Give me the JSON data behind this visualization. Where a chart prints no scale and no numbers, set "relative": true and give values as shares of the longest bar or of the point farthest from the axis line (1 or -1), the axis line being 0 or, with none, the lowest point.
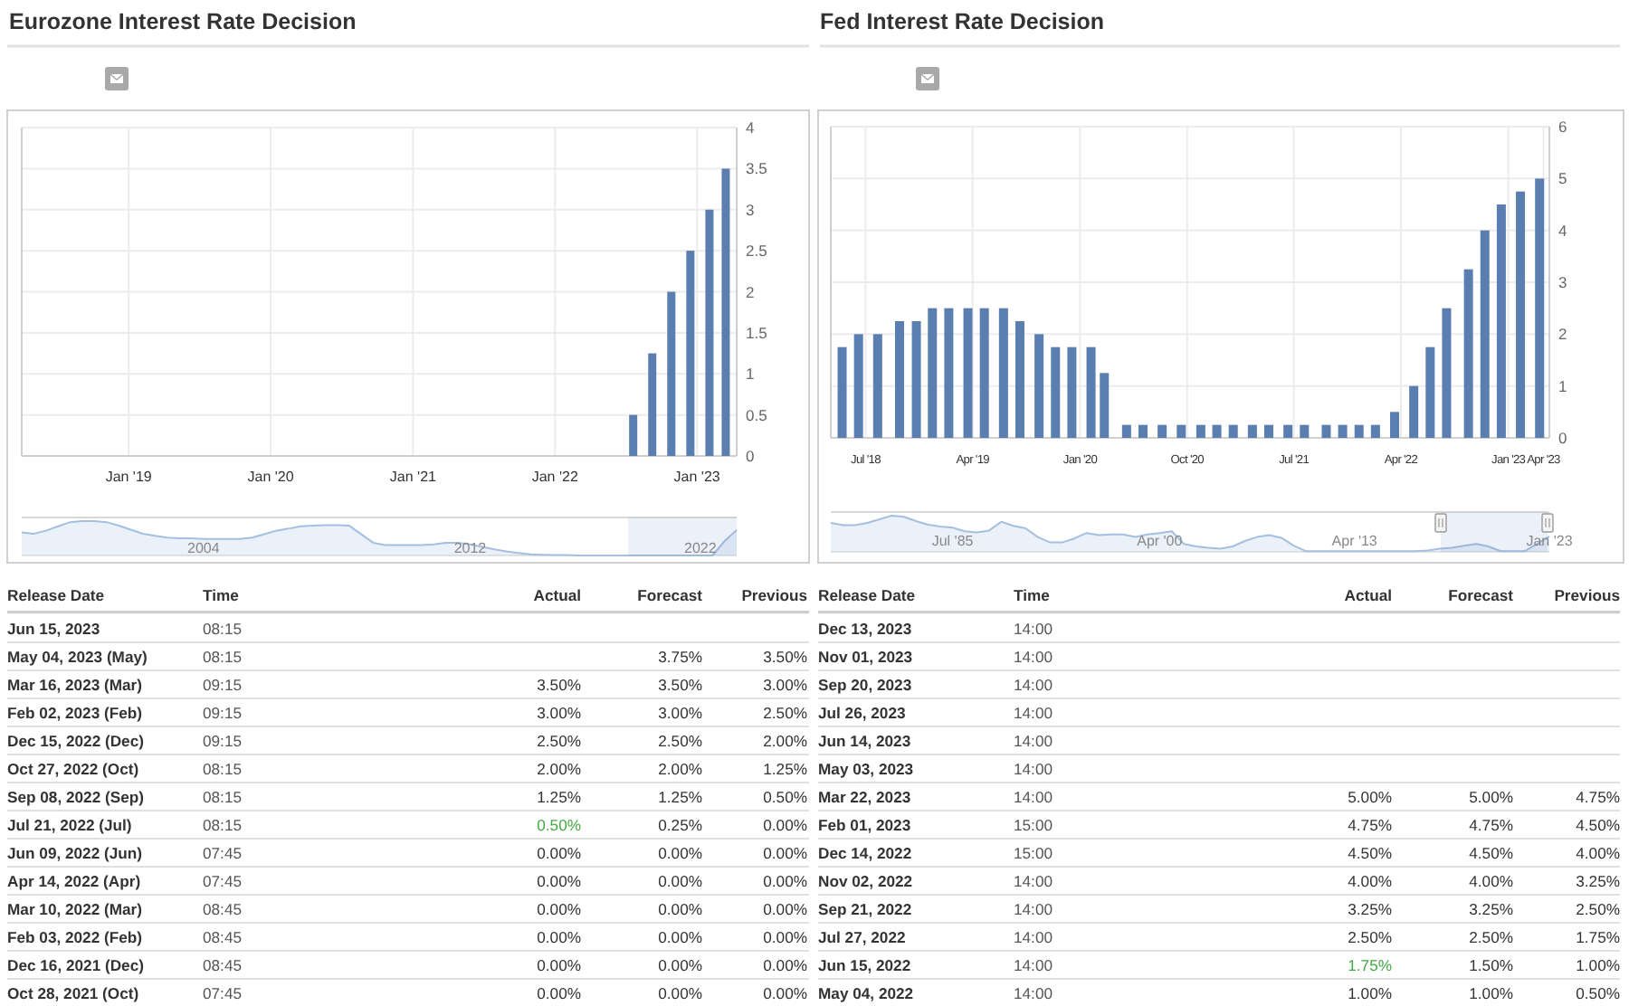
{
  "chart_data": [
    {
      "type": "bar",
      "title": "Eurozone Interest Rate Decision",
      "x": [
        "2022-07-21",
        "2022-09-08",
        "2022-10-27",
        "2022-12-15",
        "2023-02-02",
        "2023-03-16"
      ],
      "values": [
        0.5,
        1.25,
        2,
        2.5,
        3,
        3.5
      ],
      "color": "#5a7eb0",
      "xlim": [
        "2018-04-01",
        "2023-04-13"
      ],
      "ylim": [
        0,
        4
      ],
      "xticks": [
        {
          "value": "2019-01-01",
          "label": "Jan '19"
        },
        {
          "value": "2020-01-01",
          "label": "Jan '20"
        },
        {
          "value": "2021-01-01",
          "label": "Jan '21"
        },
        {
          "value": "2022-01-01",
          "label": "Jan '22"
        },
        {
          "value": "2023-01-01",
          "label": "Jan '23"
        }
      ],
      "yticks": [
        0,
        0.5,
        1,
        1.5,
        2,
        2.5,
        3,
        3.5,
        4
      ],
      "grid": true
    },
    {
      "type": "area",
      "relative": true,
      "categories": [
        null,
        null,
        null,
        null,
        null,
        null,
        null,
        null,
        null,
        null,
        null,
        null,
        null,
        null,
        null,
        "2004",
        null,
        null,
        null,
        null,
        null,
        null,
        null,
        null,
        null,
        null,
        null,
        null,
        null,
        null,
        null,
        null,
        null,
        null,
        null,
        null,
        null,
        "2012",
        null,
        null,
        null,
        null,
        null,
        null,
        null,
        null,
        null,
        null,
        null,
        null,
        null,
        null,
        null,
        null,
        null,
        null,
        "2022",
        null,
        null,
        null
      ],
      "values": [
        0.67,
        0.63,
        0.72,
        0.85,
        0.97,
        1,
        1,
        0.97,
        0.87,
        0.75,
        0.63,
        0.57,
        0.52,
        0.5,
        0.5,
        0.48,
        0.48,
        0.48,
        0.48,
        0.52,
        0.62,
        0.72,
        0.78,
        0.85,
        0.87,
        0.88,
        0.88,
        0.87,
        0.62,
        0.37,
        0.3,
        0.3,
        0.3,
        0.3,
        0.32,
        0.37,
        0.37,
        0.32,
        0.25,
        0.18,
        0.12,
        0.07,
        0.03,
        0.02,
        0.01,
        0.01,
        0,
        0,
        0,
        0,
        0,
        0,
        0,
        0,
        0,
        0,
        0,
        0,
        0.42,
        0.74
      ],
      "color": "#a4bfe0"
    },
    {
      "type": "bar",
      "title": "Fed Interest Rate Decision",
      "x": [
        "2018-05-02",
        "2018-06-13",
        "2018-08-01",
        "2018-09-26",
        "2018-11-08",
        "2018-12-19",
        "2019-01-30",
        "2019-03-20",
        "2019-05-01",
        "2019-06-19",
        "2019-07-31",
        "2019-09-18",
        "2019-10-30",
        "2019-12-11",
        "2020-01-29",
        "2020-03-03",
        "2020-04-29",
        "2020-06-10",
        "2020-07-29",
        "2020-09-16",
        "2020-11-05",
        "2020-12-16",
        "2021-01-27",
        "2021-03-17",
        "2021-04-28",
        "2021-06-16",
        "2021-07-28",
        "2021-09-22",
        "2021-11-03",
        "2021-12-15",
        "2022-01-26",
        "2022-03-16",
        "2022-05-04",
        "2022-06-15",
        "2022-07-27",
        "2022-09-21",
        "2022-11-02",
        "2022-12-14",
        "2023-02-01",
        "2023-03-22"
      ],
      "values": [
        1.75,
        2,
        2,
        2.25,
        2.25,
        2.5,
        2.5,
        2.5,
        2.5,
        2.5,
        2.25,
        2,
        1.75,
        1.75,
        1.75,
        1.25,
        0.25,
        0.25,
        0.25,
        0.25,
        0.25,
        0.25,
        0.25,
        0.25,
        0.25,
        0.25,
        0.25,
        0.25,
        0.25,
        0.25,
        0.25,
        0.5,
        1,
        1.75,
        2.5,
        3.25,
        4,
        4.5,
        4.75,
        5
      ],
      "color": "#5a7eb0",
      "xlim": [
        "2018-04-03",
        "2023-04-16"
      ],
      "ylim": [
        0,
        6
      ],
      "xticks": [
        {
          "value": "2018-07-01",
          "label": "Jul '18"
        },
        {
          "value": "2019-04-01",
          "label": "Apr '19"
        },
        {
          "value": "2020-01-01",
          "label": "Jan '20"
        },
        {
          "value": "2020-10-01",
          "label": "Oct '20"
        },
        {
          "value": "2021-07-01",
          "label": "Jul '21"
        },
        {
          "value": "2022-04-01",
          "label": "Apr '22"
        },
        {
          "value": "2023-01-01",
          "label": "Jan '23"
        },
        {
          "value": "2023-04-01",
          "label": "Apr '23"
        }
      ],
      "yticks": [
        0,
        1,
        2,
        3,
        4,
        5,
        6
      ],
      "grid": true
    },
    {
      "type": "area",
      "relative": true,
      "categories": [
        null,
        null,
        null,
        null,
        null,
        null,
        null,
        null,
        null,
        null,
        "Jul '85",
        null,
        null,
        null,
        null,
        null,
        null,
        null,
        null,
        null,
        null,
        null,
        null,
        null,
        null,
        null,
        null,
        "Apr '00",
        null,
        null,
        null,
        null,
        null,
        null,
        null,
        null,
        null,
        null,
        null,
        null,
        null,
        null,
        null,
        "Apr '13",
        null,
        null,
        null,
        null,
        null,
        null,
        null,
        null,
        null,
        null,
        null,
        null,
        null,
        null,
        null,
        "Jan '23"
      ],
      "values": [
        0.8,
        0.74,
        0.74,
        0.8,
        0.9,
        1,
        0.97,
        0.85,
        0.75,
        0.7,
        0.67,
        0.57,
        0.54,
        0.59,
        0.83,
        0.72,
        0.65,
        0.41,
        0.26,
        0.26,
        0.37,
        0.52,
        0.46,
        0.48,
        0.48,
        0.41,
        0.48,
        0.52,
        0.57,
        0.22,
        0.15,
        0.11,
        0.09,
        0.15,
        0.3,
        0.41,
        0.46,
        0.39,
        0.17,
        0.02,
        0.02,
        0.02,
        0.02,
        0.02,
        0.02,
        0.02,
        0.02,
        0.02,
        0.02,
        0.04,
        0.09,
        0.11,
        0.17,
        0.22,
        0.15,
        0.02,
        0.02,
        0.02,
        0.22,
        0.43
      ],
      "color": "#a4bfe0"
    },
    {
      "type": "other",
      "ylabel": "Release Date",
      "categories": [
        "Time",
        "Actual",
        "Forecast",
        "Previous"
      ],
      "y_categories": [
        "Jun 15, 2023",
        "May 04, 2023 (May)",
        "Mar 16, 2023 (Mar)",
        "Feb 02, 2023 (Feb)",
        "Dec 15, 2022 (Dec)",
        "Oct 27, 2022 (Oct)",
        "Sep 08, 2022 (Sep)",
        "Jul 21, 2022 (Jul)",
        "Jun 09, 2022 (Jun)",
        "Apr 14, 2022 (Apr)",
        "Mar 10, 2022 (Mar)",
        "Feb 03, 2022 (Feb)",
        "Dec 16, 2021 (Dec)",
        "Oct 28, 2021 (Oct)"
      ],
      "cell_labels": [
        [
          "08:15",
          null,
          null,
          null
        ],
        [
          "08:15",
          null,
          "3.75%",
          "3.50%"
        ],
        [
          "09:15",
          "3.50%",
          "3.50%",
          "3.00%"
        ],
        [
          "09:15",
          "3.00%",
          "3.00%",
          "2.50%"
        ],
        [
          "09:15",
          "2.50%",
          "2.50%",
          "2.00%"
        ],
        [
          "08:15",
          "2.00%",
          "2.00%",
          "1.25%"
        ],
        [
          "08:15",
          "1.25%",
          "1.25%",
          "0.50%"
        ],
        [
          "08:15",
          "0.50%",
          "0.25%",
          "0.00%"
        ],
        [
          "07:45",
          "0.00%",
          "0.00%",
          "0.00%"
        ],
        [
          "07:45",
          "0.00%",
          "0.00%",
          "0.00%"
        ],
        [
          "08:45",
          "0.00%",
          "0.00%",
          "0.00%"
        ],
        [
          "08:45",
          "0.00%",
          "0.00%",
          "0.00%"
        ],
        [
          "08:45",
          "0.00%",
          "0.00%",
          "0.00%"
        ],
        [
          "07:45",
          "0.00%",
          "0.00%",
          "0.00%"
        ]
      ]
    },
    {
      "type": "other",
      "ylabel": "Release Date",
      "categories": [
        "Time",
        "Actual",
        "Forecast",
        "Previous"
      ],
      "y_categories": [
        "Dec 13, 2023",
        "Nov 01, 2023",
        "Sep 20, 2023",
        "Jul 26, 2023",
        "Jun 14, 2023",
        "May 03, 2023",
        "Mar 22, 2023",
        "Feb 01, 2023",
        "Dec 14, 2022",
        "Nov 02, 2022",
        "Sep 21, 2022",
        "Jul 27, 2022",
        "Jun 15, 2022",
        "May 04, 2022"
      ],
      "cell_labels": [
        [
          "14:00",
          null,
          null,
          null
        ],
        [
          "14:00",
          null,
          null,
          null
        ],
        [
          "14:00",
          null,
          null,
          null
        ],
        [
          "14:00",
          null,
          null,
          null
        ],
        [
          "14:00",
          null,
          null,
          null
        ],
        [
          "14:00",
          null,
          null,
          null
        ],
        [
          "14:00",
          "5.00%",
          "5.00%",
          "4.75%"
        ],
        [
          "15:00",
          "4.75%",
          "4.75%",
          "4.50%"
        ],
        [
          "15:00",
          "4.50%",
          "4.50%",
          "4.00%"
        ],
        [
          "14:00",
          "4.00%",
          "4.00%",
          "3.25%"
        ],
        [
          "14:00",
          "3.25%",
          "3.25%",
          "2.50%"
        ],
        [
          "14:00",
          "2.50%",
          "2.50%",
          "1.75%"
        ],
        [
          "14:00",
          "1.75%",
          "1.50%",
          "1.00%"
        ],
        [
          "14:00",
          "1.00%",
          "1.00%",
          "0.50%"
        ]
      ]
    }
  ]
}
